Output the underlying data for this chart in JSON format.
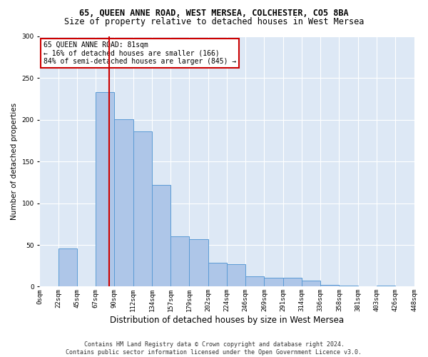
{
  "title1": "65, QUEEN ANNE ROAD, WEST MERSEA, COLCHESTER, CO5 8BA",
  "title2": "Size of property relative to detached houses in West Mersea",
  "xlabel": "Distribution of detached houses by size in West Mersea",
  "ylabel": "Number of detached properties",
  "footer1": "Contains HM Land Registry data © Crown copyright and database right 2024.",
  "footer2": "Contains public sector information licensed under the Open Government Licence v3.0.",
  "annotation_line1": "65 QUEEN ANNE ROAD: 81sqm",
  "annotation_line2": "← 16% of detached houses are smaller (166)",
  "annotation_line3": "84% of semi-detached houses are larger (845) →",
  "property_size": 81,
  "bin_labels": [
    "0sqm",
    "22sqm",
    "45sqm",
    "67sqm",
    "90sqm",
    "112sqm",
    "134sqm",
    "157sqm",
    "179sqm",
    "202sqm",
    "224sqm",
    "246sqm",
    "269sqm",
    "291sqm",
    "314sqm",
    "336sqm",
    "358sqm",
    "381sqm",
    "403sqm",
    "426sqm",
    "448sqm"
  ],
  "bar_heights": [
    0,
    46,
    0,
    233,
    201,
    186,
    122,
    60,
    57,
    29,
    27,
    12,
    11,
    11,
    7,
    2,
    1,
    0,
    1,
    0
  ],
  "bar_color": "#aec6e8",
  "bar_edge_color": "#5b9bd5",
  "vline_color": "#cc0000",
  "vline_bar_index": 3.7,
  "annotation_box_color": "#cc0000",
  "background_color": "#dde8f5",
  "ylim": [
    0,
    300
  ],
  "yticks": [
    0,
    50,
    100,
    150,
    200,
    250,
    300
  ],
  "grid_color": "#ffffff",
  "title1_fontsize": 8.5,
  "title2_fontsize": 8.5,
  "xlabel_fontsize": 8.5,
  "ylabel_fontsize": 7.5,
  "tick_fontsize": 6.5,
  "ann_fontsize": 7.0,
  "footer_fontsize": 6.0
}
